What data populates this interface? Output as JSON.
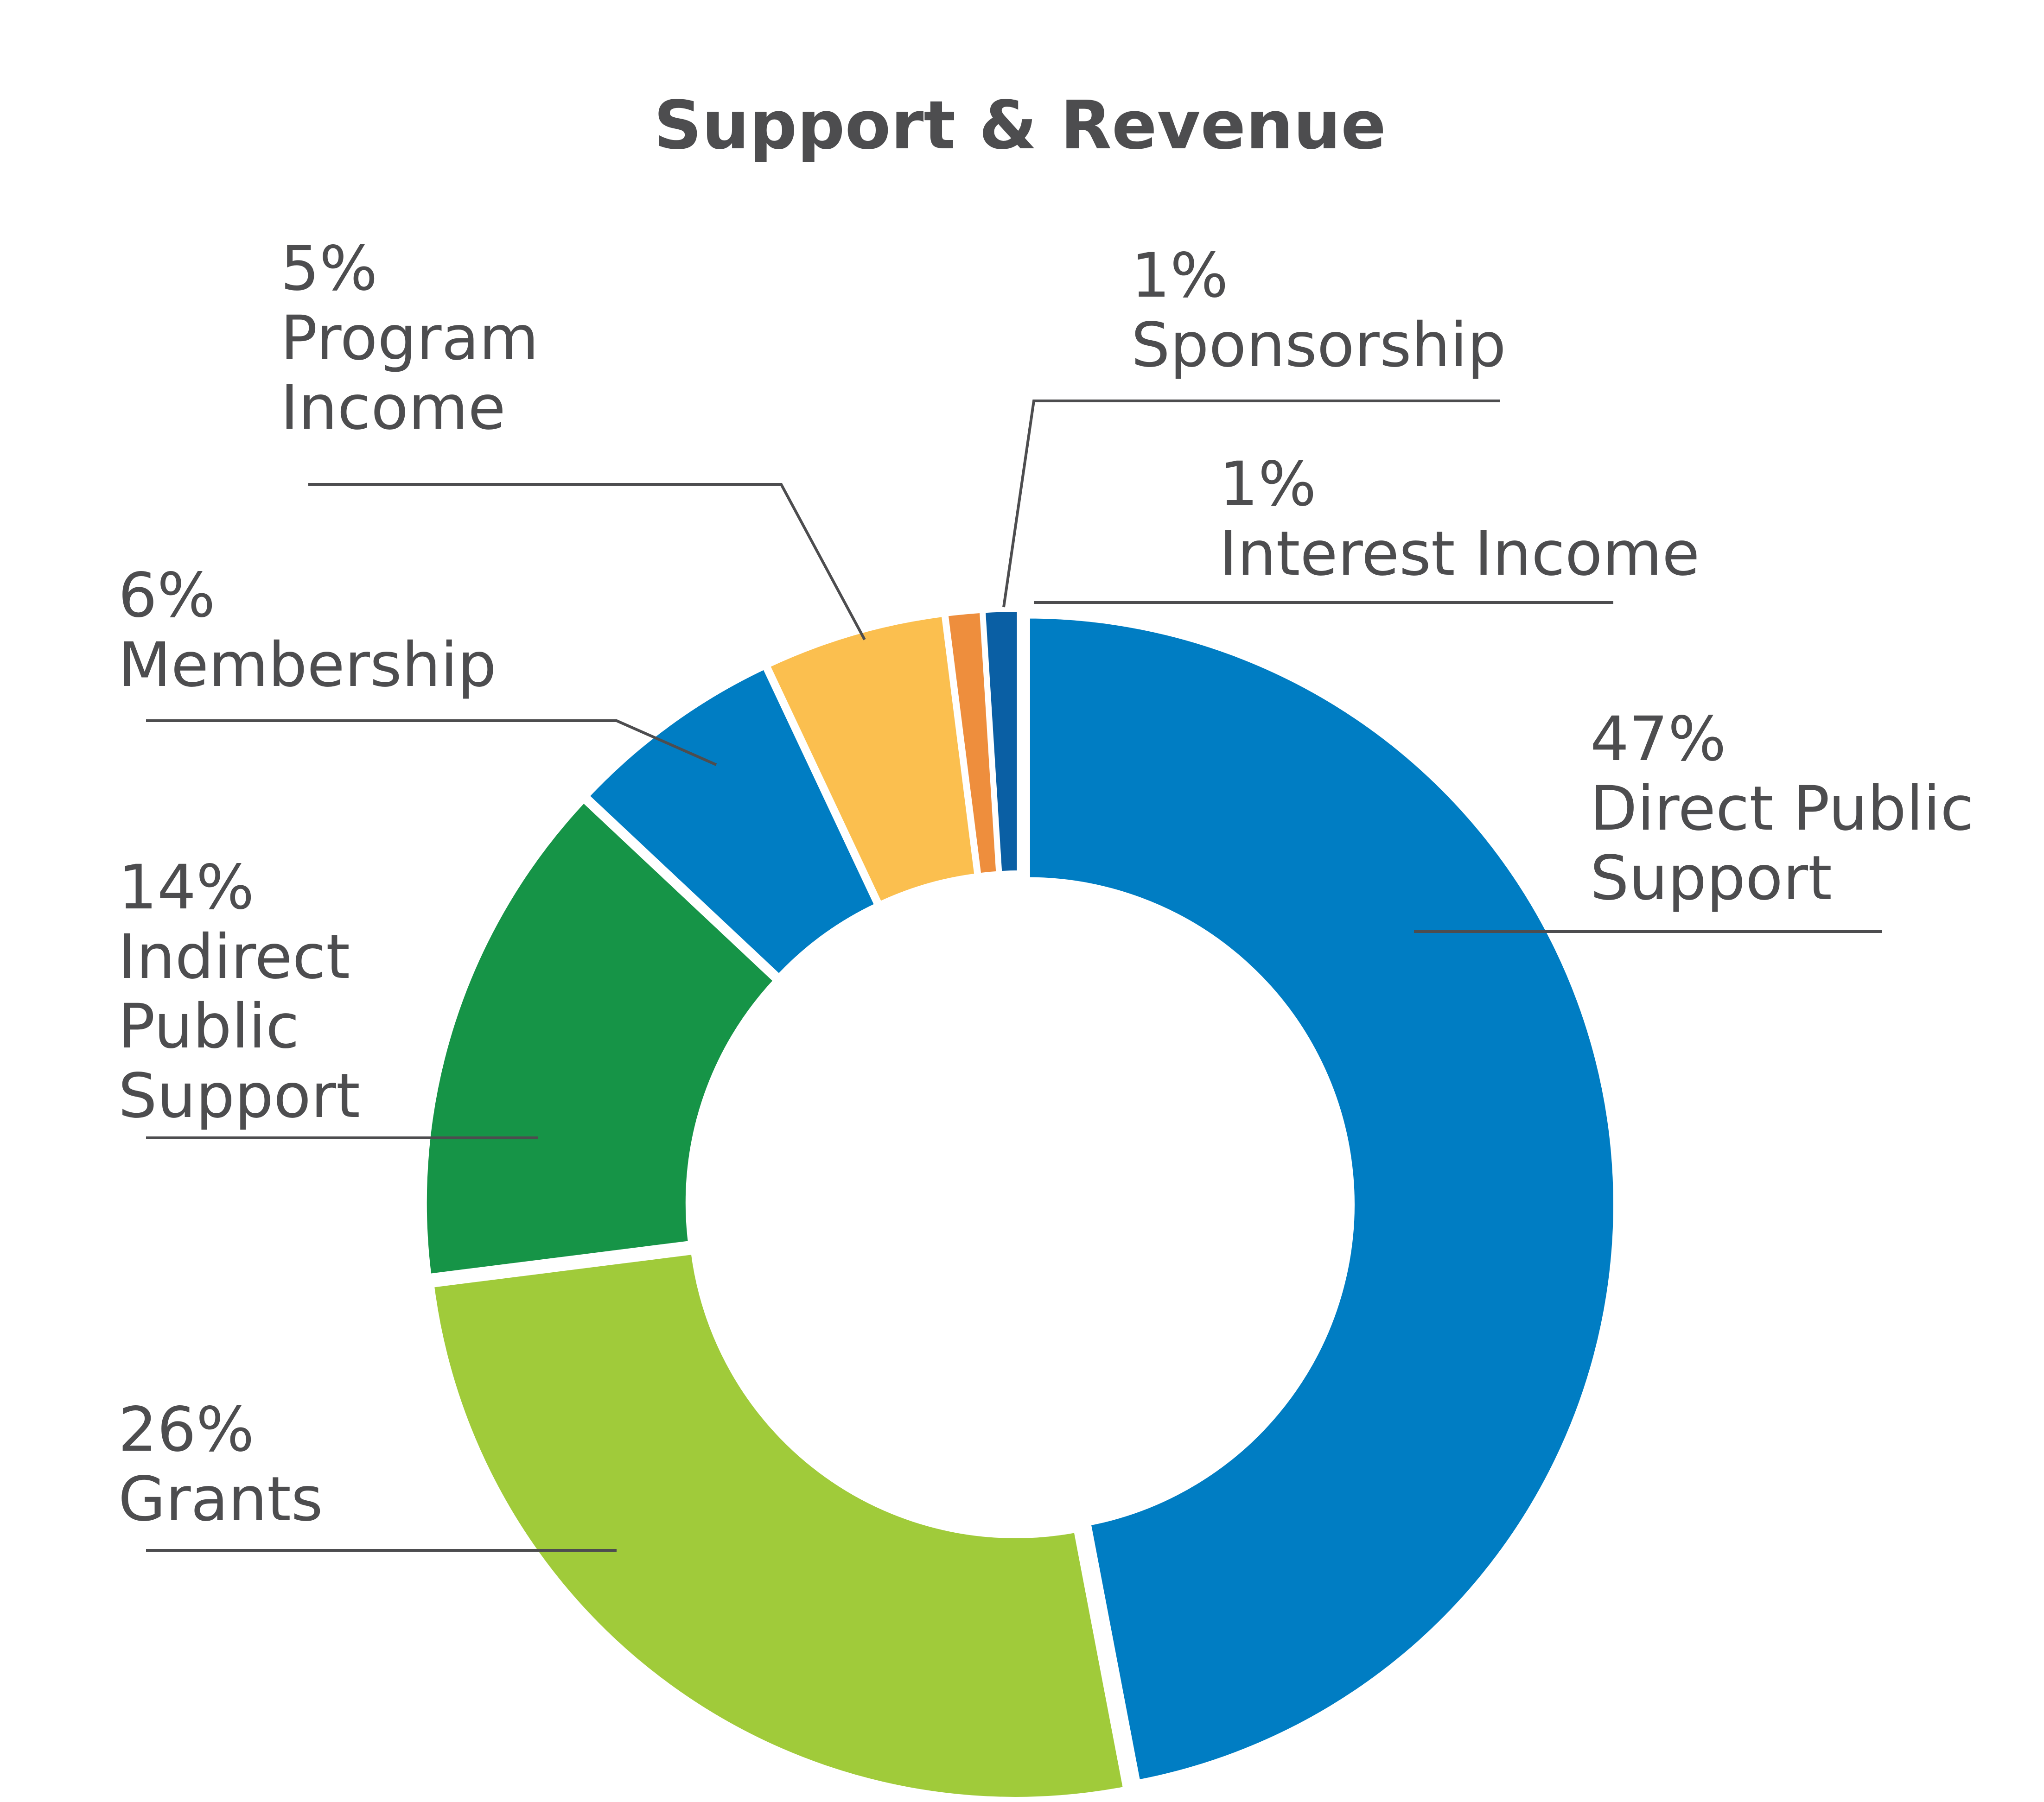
{
  "chart_data": {
    "type": "pie",
    "variant": "donut",
    "title": "Support & Revenue",
    "slices": [
      {
        "name": "Direct Public Support",
        "label_lines": [
          "Direct Public",
          "Support"
        ],
        "value": 47,
        "pct_label": "47%",
        "color": "#007dc3"
      },
      {
        "name": "Grants",
        "label_lines": [
          "Grants"
        ],
        "value": 26,
        "pct_label": "26%",
        "color": "#a0cb3a"
      },
      {
        "name": "Indirect Public Support",
        "label_lines": [
          "Indirect",
          "Public",
          "Support"
        ],
        "value": 14,
        "pct_label": "14%",
        "color": "#169447"
      },
      {
        "name": "Membership",
        "label_lines": [
          "Membership"
        ],
        "value": 6,
        "pct_label": "6%",
        "color": "#007dc3"
      },
      {
        "name": "Program Income",
        "label_lines": [
          "Program",
          "Income"
        ],
        "value": 5,
        "pct_label": "5%",
        "color": "#fbbf4f"
      },
      {
        "name": "Sponsorship",
        "label_lines": [
          "Sponsorship"
        ],
        "value": 1,
        "pct_label": "1%",
        "color": "#ee8e3d"
      },
      {
        "name": "Interest Income",
        "label_lines": [
          "Interest Income"
        ],
        "value": 1,
        "pct_label": "1%",
        "color": "#0a5fa4"
      }
    ],
    "legend": "none (callout labels)"
  }
}
